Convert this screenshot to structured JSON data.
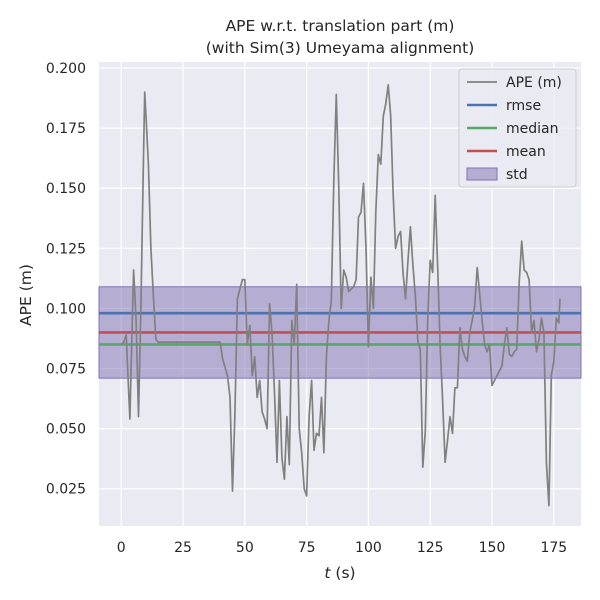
{
  "chart_data": {
    "type": "line",
    "title": "APE w.r.t. translation part (m)",
    "subtitle": "(with Sim(3) Umeyama alignment)",
    "xlabel_italic": "t",
    "xlabel_unit": " (s)",
    "ylabel": "APE (m)",
    "xlim": [
      -9,
      186
    ],
    "ylim": [
      0.0095,
      0.2025
    ],
    "xticks": [
      0,
      25,
      50,
      75,
      100,
      125,
      150,
      175
    ],
    "yticks": [
      0.025,
      0.05,
      0.075,
      0.1,
      0.125,
      0.15,
      0.175,
      0.2
    ],
    "ytick_labels": [
      "0.025",
      "0.050",
      "0.075",
      "0.100",
      "0.125",
      "0.150",
      "0.175",
      "0.200"
    ],
    "grid": true,
    "legend_position": "upper-right",
    "colors": {
      "background": "#eaeaf2",
      "grid": "#ffffff",
      "ape": "#808080",
      "rmse": "#4c72b0",
      "median": "#55a868",
      "mean": "#c44e52",
      "std": "#8172b2"
    },
    "stats": {
      "rmse": 0.098,
      "median": 0.085,
      "mean": 0.09,
      "std_low": 0.071,
      "std_high": 0.109
    },
    "legend": [
      {
        "key": "ape",
        "label": "APE (m)",
        "kind": "line"
      },
      {
        "key": "rmse",
        "label": "rmse",
        "kind": "line"
      },
      {
        "key": "median",
        "label": "median",
        "kind": "line"
      },
      {
        "key": "mean",
        "label": "mean",
        "kind": "line"
      },
      {
        "key": "std",
        "label": "std",
        "kind": "patch"
      }
    ],
    "series": [
      {
        "key": "ape",
        "x": [
          0,
          1,
          2,
          3,
          3.5,
          4,
          5,
          6,
          7,
          8,
          9,
          9.5,
          10,
          11,
          12,
          13,
          14,
          15,
          20,
          25,
          30,
          35,
          38,
          40,
          41,
          43,
          44,
          45,
          46,
          47,
          48,
          49,
          50,
          51,
          52,
          53,
          54,
          55,
          56,
          57,
          58,
          59,
          60,
          61,
          62,
          63,
          64,
          65,
          66,
          67,
          68,
          69,
          70,
          71,
          72,
          73,
          74,
          75,
          76,
          77,
          78,
          79,
          80,
          81,
          82,
          83,
          84,
          85,
          86,
          87,
          88,
          89,
          90,
          91,
          92,
          93,
          94,
          95,
          96,
          97,
          98,
          99,
          100,
          101,
          102,
          103,
          104,
          105,
          106,
          107,
          108,
          109,
          110,
          111,
          112,
          113,
          114,
          115,
          116,
          117,
          118,
          119,
          120,
          121,
          122,
          123,
          124,
          125,
          126,
          127,
          128,
          129,
          130,
          131,
          132,
          133,
          134,
          135,
          136,
          137,
          138,
          139,
          140,
          141,
          142,
          143,
          144,
          145,
          146,
          147,
          148,
          149,
          150,
          151,
          152,
          153,
          154,
          155,
          156,
          157,
          158,
          159,
          160,
          161,
          162,
          163,
          164,
          165,
          166,
          167,
          168,
          169,
          170,
          171,
          172,
          173,
          174,
          175,
          176,
          177,
          177.5
        ],
        "y": [
          0.085,
          0.086,
          0.089,
          0.065,
          0.054,
          0.075,
          0.116,
          0.095,
          0.055,
          0.103,
          0.163,
          0.19,
          0.18,
          0.16,
          0.125,
          0.105,
          0.087,
          0.086,
          0.086,
          0.086,
          0.086,
          0.086,
          0.086,
          0.086,
          0.079,
          0.072,
          0.063,
          0.024,
          0.056,
          0.104,
          0.108,
          0.112,
          0.112,
          0.085,
          0.093,
          0.072,
          0.08,
          0.063,
          0.07,
          0.057,
          0.054,
          0.05,
          0.102,
          0.09,
          0.065,
          0.036,
          0.07,
          0.038,
          0.029,
          0.055,
          0.035,
          0.095,
          0.085,
          0.11,
          0.05,
          0.04,
          0.025,
          0.022,
          0.055,
          0.07,
          0.041,
          0.048,
          0.047,
          0.063,
          0.04,
          0.08,
          0.095,
          0.103,
          0.153,
          0.189,
          0.15,
          0.1,
          0.116,
          0.113,
          0.107,
          0.108,
          0.109,
          0.112,
          0.138,
          0.14,
          0.152,
          0.125,
          0.084,
          0.113,
          0.1,
          0.14,
          0.164,
          0.16,
          0.18,
          0.185,
          0.193,
          0.18,
          0.148,
          0.125,
          0.13,
          0.132,
          0.115,
          0.104,
          0.12,
          0.134,
          0.118,
          0.105,
          0.086,
          0.083,
          0.034,
          0.049,
          0.095,
          0.12,
          0.115,
          0.147,
          0.118,
          0.085,
          0.062,
          0.036,
          0.045,
          0.055,
          0.048,
          0.067,
          0.067,
          0.092,
          0.083,
          0.08,
          0.078,
          0.09,
          0.095,
          0.101,
          0.117,
          0.106,
          0.095,
          0.085,
          0.082,
          0.085,
          0.068,
          0.07,
          0.072,
          0.074,
          0.076,
          0.085,
          0.092,
          0.081,
          0.08,
          0.082,
          0.083,
          0.111,
          0.128,
          0.116,
          0.115,
          0.112,
          0.09,
          0.095,
          0.082,
          0.087,
          0.096,
          0.09,
          0.036,
          0.018,
          0.072,
          0.078,
          0.096,
          0.094,
          0.104
        ]
      }
    ]
  }
}
